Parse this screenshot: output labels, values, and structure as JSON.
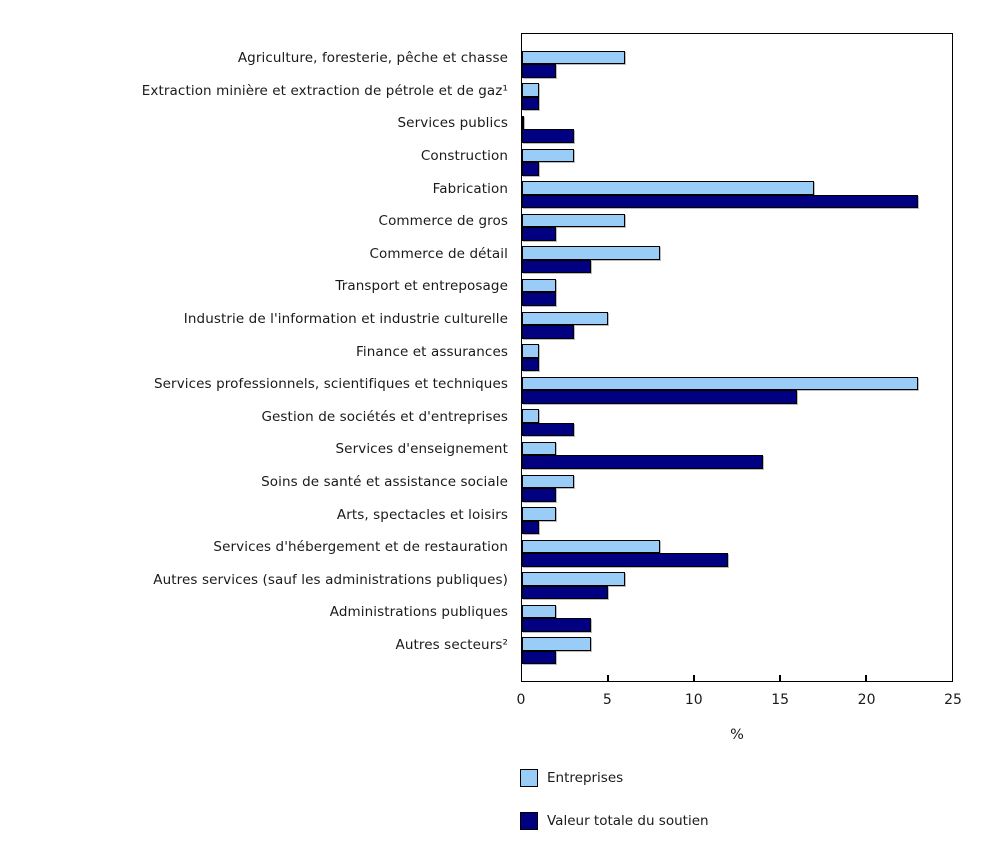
{
  "chart_data": {
    "type": "bar",
    "orientation": "horizontal",
    "title": "",
    "xlabel": "%",
    "ylabel": "",
    "xlim": [
      0,
      25
    ],
    "xticks": [
      0,
      5,
      10,
      15,
      20,
      25
    ],
    "grid": false,
    "legend_position": "bottom-left",
    "categories": [
      "Agriculture, foresterie, pêche et chasse",
      "Extraction minière et extraction de pétrole et de gaz¹",
      "Services publics",
      "Construction",
      "Fabrication",
      "Commerce de gros",
      "Commerce de détail",
      "Transport et entreposage",
      "Industrie de l'information et industrie culturelle",
      "Finance et assurances",
      "Services professionnels, scientifiques et techniques",
      "Gestion de sociétés et d'entreprises",
      "Services d'enseignement",
      "Soins de santé et assistance sociale",
      "Arts, spectacles et loisirs",
      "Services d'hébergement et de restauration",
      "Autres services (sauf les administrations publiques)",
      "Administrations publiques",
      "Autres secteurs²"
    ],
    "series": [
      {
        "name": "Entreprises",
        "color": "#99CCF7",
        "values": [
          6,
          1,
          0,
          3,
          17,
          6,
          8,
          2,
          5,
          1,
          23,
          1,
          2,
          3,
          2,
          8,
          6,
          2,
          4
        ]
      },
      {
        "name": "Valeur totale du soutien",
        "color": "#000080",
        "values": [
          2,
          1,
          3,
          1,
          23,
          2,
          4,
          2,
          3,
          1,
          16,
          3,
          14,
          2,
          1,
          12,
          5,
          4,
          2
        ]
      }
    ]
  },
  "colors": {
    "bar_border": "#000000",
    "frame_border": "#000000",
    "text": "#1a1a1a",
    "background": "#ffffff"
  }
}
